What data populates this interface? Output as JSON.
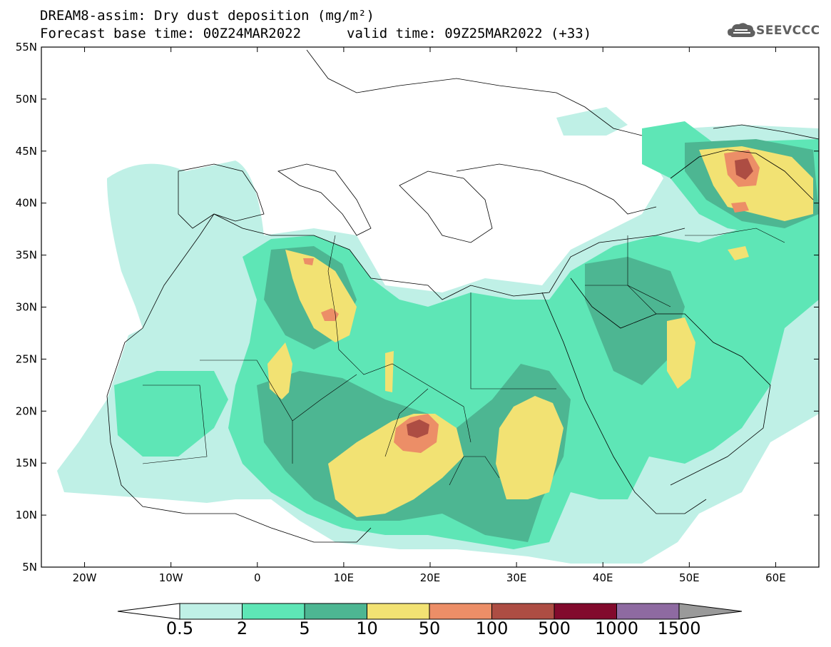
{
  "header": {
    "title_line1": "DREAM8-assim: Dry dust deposition (mg/m²)",
    "title_line2": "Forecast base time: 00Z24MAR2022",
    "valid_time": "valid time: 09Z25MAR2022 (+33)",
    "logo_text": "SEEVCCC"
  },
  "map": {
    "lon_range": [
      -25,
      65
    ],
    "lat_range": [
      5,
      55
    ],
    "lat_ticks": [
      "55N",
      "50N",
      "45N",
      "40N",
      "35N",
      "30N",
      "25N",
      "20N",
      "15N",
      "10N",
      "5N"
    ],
    "lon_ticks": [
      "20W",
      "10W",
      "0",
      "10E",
      "20E",
      "30E",
      "40E",
      "50E",
      "60E"
    ]
  },
  "colorbar": {
    "labels": [
      "0.5",
      "2",
      "5",
      "10",
      "50",
      "100",
      "500",
      "1000",
      "1500"
    ],
    "colors": [
      "#bff0e6",
      "#5ee6b6",
      "#4db692",
      "#f2e273",
      "#ec8e67",
      "#ad4d43",
      "#820a2d",
      "#8e6aa1",
      "#9a9a9a"
    ],
    "under_color": "#ffffff"
  }
}
